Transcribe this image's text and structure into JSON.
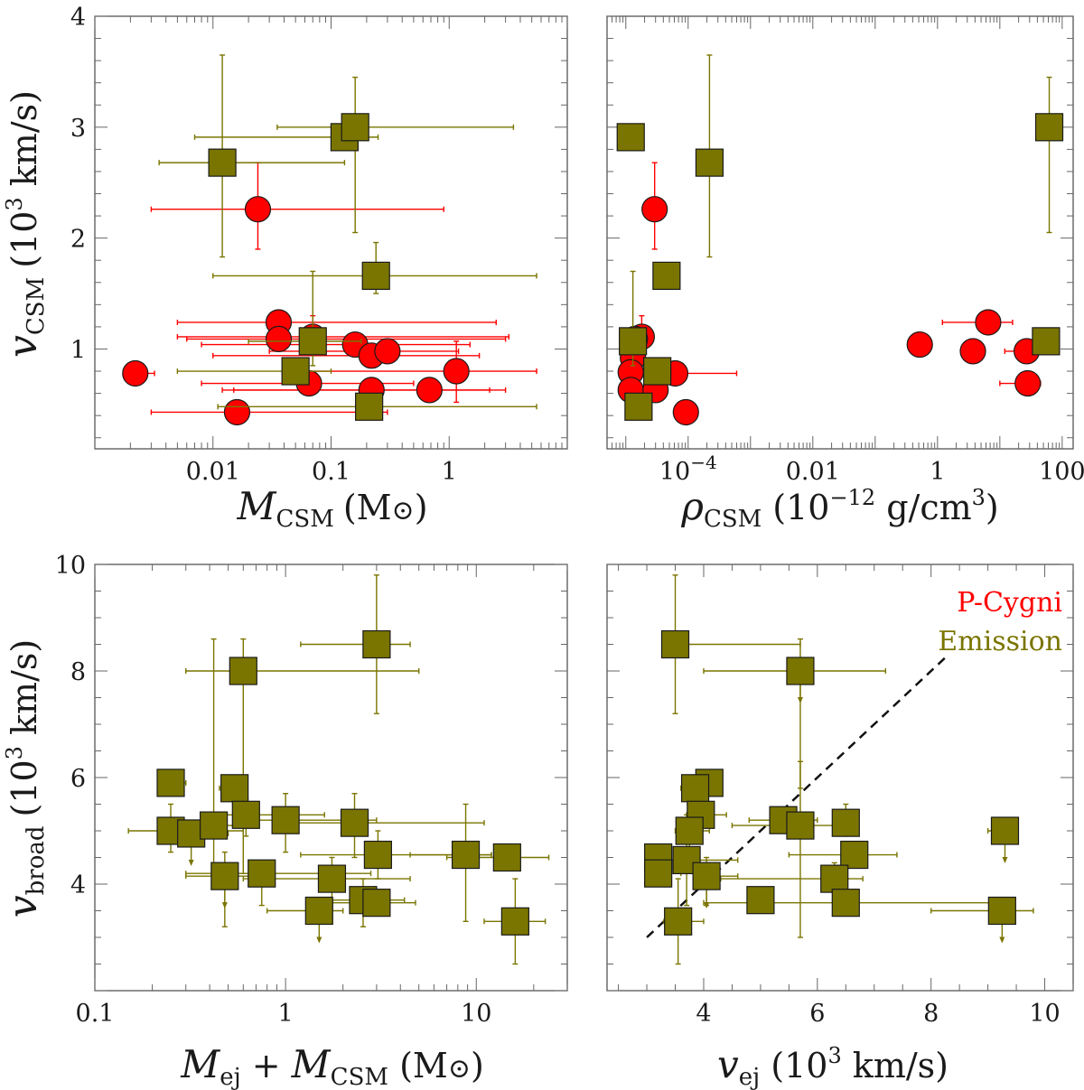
{
  "colors": {
    "pcygni": "#ff0000",
    "emission": "#7a7500",
    "outline": "#1a1a1a"
  },
  "legend": {
    "pcygni_label": "P-Cygni",
    "emission_label": "Emission"
  },
  "chart_data": [
    {
      "type": "scatter",
      "id": "vcsm-vs-mcsm",
      "xlabel": {
        "main": "M",
        "sub": "CSM",
        "unit": "(M",
        "sun": "⊙",
        "close": ")"
      },
      "ylabel": {
        "main": "v",
        "sub": "CSM",
        "pre": "(10",
        "sup": "3",
        "post": " km/s)"
      },
      "xscale": "log",
      "xlim": [
        0.001,
        10
      ],
      "ylim": [
        0.1,
        4
      ],
      "xticks": [
        {
          "v": 0.01,
          "label": "0.01"
        },
        {
          "v": 0.1,
          "label": "0.1"
        },
        {
          "v": 1,
          "label": "1"
        }
      ],
      "yticks": [
        {
          "v": 1,
          "label": "1"
        },
        {
          "v": 2,
          "label": "2"
        },
        {
          "v": 3,
          "label": "3"
        },
        {
          "v": 4,
          "label": "4"
        }
      ],
      "series": [
        {
          "name": "P-Cygni",
          "marker": "circle",
          "points": [
            {
              "x": 0.0022,
              "y": 0.78,
              "xerr": [
                0.0018,
                0.0032
              ]
            },
            {
              "x": 0.024,
              "y": 2.26,
              "xerr": [
                0.003,
                0.9
              ],
              "yerr": [
                1.9,
                2.68
              ]
            },
            {
              "x": 0.036,
              "y": 1.24,
              "xerr": [
                0.005,
                2.5
              ]
            },
            {
              "x": 0.036,
              "y": 1.09,
              "xerr": [
                0.006,
                3.0
              ]
            },
            {
              "x": 0.07,
              "y": 1.11,
              "xerr": [
                0.005,
                3.2
              ],
              "yerr": [
                0.95,
                1.3
              ]
            },
            {
              "x": 0.065,
              "y": 0.69,
              "xerr": [
                0.008,
                0.5
              ]
            },
            {
              "x": 0.016,
              "y": 0.43,
              "xerr": [
                0.003,
                0.3
              ]
            },
            {
              "x": 0.16,
              "y": 1.04,
              "xerr": [
                0.008,
                1.5
              ]
            },
            {
              "x": 0.22,
              "y": 0.94,
              "xerr": [
                0.01,
                1.8
              ]
            },
            {
              "x": 0.3,
              "y": 0.98,
              "xerr": [
                0.03,
                1.2
              ]
            },
            {
              "x": 0.22,
              "y": 0.63,
              "xerr": [
                0.012,
                2.2
              ]
            },
            {
              "x": 0.68,
              "y": 0.63,
              "xerr": [
                0.015,
                3.0
              ]
            },
            {
              "x": 1.15,
              "y": 0.8,
              "xerr": [
                0.04,
                5.5
              ],
              "yerr": [
                0.52,
                1.07
              ]
            }
          ]
        },
        {
          "name": "Emission",
          "marker": "square",
          "points": [
            {
              "x": 0.012,
              "y": 2.68,
              "xerr": [
                0.0035,
                0.13
              ],
              "yerr": [
                1.83,
                3.65
              ]
            },
            {
              "x": 0.13,
              "y": 2.91,
              "xerr": [
                0.007,
                0.25
              ]
            },
            {
              "x": 0.16,
              "y": 3.0,
              "xerr": [
                0.035,
                3.5
              ],
              "yerr": [
                2.05,
                3.45
              ]
            },
            {
              "x": 0.24,
              "y": 1.66,
              "xerr": [
                0.01,
                5.5
              ],
              "yerr": [
                1.5,
                1.96
              ]
            },
            {
              "x": 0.07,
              "y": 1.07,
              "xerr": [
                0.02,
                0.18
              ],
              "yerr": [
                0.85,
                1.7
              ]
            },
            {
              "x": 0.05,
              "y": 0.8,
              "xerr": [
                0.005,
                0.1
              ]
            },
            {
              "x": 0.21,
              "y": 0.48,
              "xerr": [
                0.011,
                5.5
              ]
            }
          ]
        }
      ]
    },
    {
      "type": "scatter",
      "id": "vcsm-vs-rho",
      "xlabel": {
        "main": "ρ",
        "sub": "CSM",
        "pre": "(10",
        "sup": "−12",
        "post": " g/cm",
        "sup2": "3",
        "close": ")"
      },
      "xscale": "log",
      "xlim": [
        5e-06,
        150
      ],
      "ylim": [
        0.1,
        4
      ],
      "xticks": [
        {
          "v": 0.0001,
          "label": "10",
          "sup": "−4"
        },
        {
          "v": 0.01,
          "label": "0.01"
        },
        {
          "v": 1,
          "label": "1"
        },
        {
          "v": 100,
          "label": "100"
        }
      ],
      "yticks": [
        {
          "v": 1
        },
        {
          "v": 2
        },
        {
          "v": 3
        },
        {
          "v": 4
        }
      ],
      "series": [
        {
          "name": "P-Cygni",
          "marker": "circle",
          "points": [
            {
              "x": 2.9e-05,
              "y": 2.26,
              "yerr": [
                1.9,
                2.68
              ]
            },
            {
              "x": 1.8e-05,
              "y": 1.11,
              "yerr": [
                0.95,
                1.3
              ]
            },
            {
              "x": 1.4e-05,
              "y": 1.09
            },
            {
              "x": 1.3e-05,
              "y": 0.92
            },
            {
              "x": 1.2e-05,
              "y": 0.79
            },
            {
              "x": 1.2e-05,
              "y": 0.63
            },
            {
              "x": 3e-05,
              "y": 0.63
            },
            {
              "x": 6.2e-05,
              "y": 0.78,
              "xerr": [
                2.2e-05,
                0.0006
              ]
            },
            {
              "x": 9.2e-05,
              "y": 0.43,
              "xerr": [
                6e-05,
                0.00012
              ]
            },
            {
              "x": 0.52,
              "y": 1.04
            },
            {
              "x": 6.5,
              "y": 1.24,
              "xerr": [
                1.2,
                16
              ]
            },
            {
              "x": 3.7,
              "y": 0.98
            },
            {
              "x": 27,
              "y": 0.98,
              "xerr": [
                12,
                40
              ]
            },
            {
              "x": 28,
              "y": 0.69,
              "xerr": [
                10,
                45
              ]
            }
          ]
        },
        {
          "name": "Emission",
          "marker": "square",
          "points": [
            {
              "x": 1.2e-05,
              "y": 2.91
            },
            {
              "x": 0.00022,
              "y": 2.68,
              "yerr": [
                1.83,
                3.65
              ]
            },
            {
              "x": 4.5e-05,
              "y": 1.66,
              "xerr": [
                3.5e-05,
                6e-05
              ]
            },
            {
              "x": 62,
              "y": 3.0,
              "yerr": [
                2.05,
                3.45
              ]
            },
            {
              "x": 55,
              "y": 1.07
            },
            {
              "x": 1.3e-05,
              "y": 1.07,
              "yerr": [
                0.85,
                1.7
              ]
            },
            {
              "x": 3.2e-05,
              "y": 0.8
            },
            {
              "x": 1.6e-05,
              "y": 0.48
            }
          ]
        }
      ]
    },
    {
      "type": "scatter",
      "id": "vbroad-vs-mtot",
      "xlabel": {
        "main": "M",
        "sub": "ej",
        "mid": " + ",
        "main2": "M",
        "sub2": "CSM",
        "unit": " (M",
        "sun": "⊙",
        "close": ")"
      },
      "ylabel": {
        "main": "v",
        "sub": "broad",
        "pre": "(10",
        "sup": "3",
        "post": " km/s)"
      },
      "xscale": "log",
      "xlim": [
        0.1,
        30
      ],
      "ylim": [
        2,
        10
      ],
      "xticks": [
        {
          "v": 0.1,
          "label": "0.1"
        },
        {
          "v": 1,
          "label": "1"
        },
        {
          "v": 10,
          "label": "10"
        }
      ],
      "yticks": [
        {
          "v": 4,
          "label": "4"
        },
        {
          "v": 6,
          "label": "6"
        },
        {
          "v": 8,
          "label": "8"
        },
        {
          "v": 10,
          "label": "10"
        }
      ],
      "series": [
        {
          "name": "Emission",
          "marker": "square",
          "points": [
            {
              "x": 0.25,
              "y": 5.9,
              "xerr": [
                0.22,
                0.3
              ]
            },
            {
              "x": 0.25,
              "y": 5.0,
              "xerr": [
                0.15,
                0.6
              ],
              "yerr": [
                4.6,
                5.5
              ]
            },
            {
              "x": 0.32,
              "y": 4.95,
              "xerr": [
                0.25,
                0.5
              ],
              "ulim": true
            },
            {
              "x": 0.42,
              "y": 5.1,
              "xerr": [
                0.3,
                0.65
              ],
              "yerr": [
                4.1,
                8.6
              ]
            },
            {
              "x": 0.54,
              "y": 5.8,
              "xerr": [
                0.45,
                0.62
              ]
            },
            {
              "x": 0.6,
              "y": 8.0,
              "xerr": [
                0.3,
                5.0
              ],
              "yerr": [
                4.2,
                8.6
              ]
            },
            {
              "x": 0.62,
              "y": 5.3,
              "xerr": [
                0.45,
                1.6
              ],
              "yerr": [
                4.9,
                5.6
              ]
            },
            {
              "x": 0.48,
              "y": 4.15,
              "xerr": [
                0.3,
                0.85
              ],
              "yerr": [
                3.2,
                4.6
              ],
              "ulim": true
            },
            {
              "x": 0.75,
              "y": 4.2,
              "xerr": [
                0.3,
                2.8
              ],
              "yerr": [
                3.6,
                4.4
              ]
            },
            {
              "x": 1.0,
              "y": 5.2,
              "xerr": [
                0.6,
                3.0
              ],
              "yerr": [
                4.6,
                5.7
              ]
            },
            {
              "x": 1.75,
              "y": 4.1,
              "xerr": [
                0.6,
                4.5
              ],
              "yerr": [
                3.7,
                4.5
              ]
            },
            {
              "x": 1.5,
              "y": 3.5,
              "xerr": [
                0.8,
                2.0
              ],
              "ulim": true
            },
            {
              "x": 2.3,
              "y": 5.15,
              "xerr": [
                0.9,
                11
              ],
              "yerr": [
                4.5,
                5.7
              ]
            },
            {
              "x": 2.55,
              "y": 3.7,
              "xerr": [
                1.3,
                4.2
              ],
              "yerr": [
                3.2,
                4.1
              ]
            },
            {
              "x": 3.0,
              "y": 3.65,
              "xerr": [
                1.5,
                4.8
              ]
            },
            {
              "x": 3.05,
              "y": 4.55,
              "xerr": [
                1.2,
                12
              ],
              "yerr": [
                4.1,
                5.0
              ]
            },
            {
              "x": 3.0,
              "y": 8.5,
              "xerr": [
                1.2,
                4.5
              ],
              "yerr": [
                7.2,
                9.8
              ]
            },
            {
              "x": 8.8,
              "y": 4.55,
              "xerr": [
                4.5,
                12
              ],
              "yerr": [
                3.3,
                5.5
              ]
            },
            {
              "x": 14.5,
              "y": 4.5,
              "xerr": [
                7,
                24
              ]
            },
            {
              "x": 16.0,
              "y": 3.3,
              "xerr": [
                11,
                23
              ],
              "yerr": [
                2.5,
                4.1
              ]
            }
          ]
        }
      ]
    },
    {
      "type": "scatter",
      "id": "vbroad-vs-vej",
      "xlabel": {
        "main": "v",
        "sub": "ej",
        "pre": " (10",
        "sup": "3",
        "post": " km/s)"
      },
      "xscale": "linear",
      "xlim": [
        2.3,
        10.5
      ],
      "ylim": [
        2,
        10
      ],
      "xticks": [
        {
          "v": 4,
          "label": "4"
        },
        {
          "v": 6,
          "label": "6"
        },
        {
          "v": 8,
          "label": "8"
        },
        {
          "v": 10,
          "label": "10"
        }
      ],
      "yticks": [
        {
          "v": 4
        },
        {
          "v": 6
        },
        {
          "v": 8
        },
        {
          "v": 10
        }
      ],
      "line": {
        "style": "dashed",
        "x": [
          3.0,
          8.3
        ],
        "y": [
          3.0,
          8.3
        ]
      },
      "series": [
        {
          "name": "Emission",
          "marker": "square",
          "points": [
            {
              "x": 3.5,
              "y": 8.5,
              "xerr": [
                3.3,
                5.7
              ],
              "yerr": [
                7.2,
                9.8
              ]
            },
            {
              "x": 5.7,
              "y": 8.0,
              "xerr": [
                4.0,
                7.2
              ],
              "yerr": [
                5.8,
                8.6
              ],
              "ulim": true
            },
            {
              "x": 4.1,
              "y": 5.9,
              "xerr": [
                3.9,
                4.3
              ]
            },
            {
              "x": 3.85,
              "y": 5.8,
              "xerr": [
                3.6,
                4.2
              ]
            },
            {
              "x": 3.95,
              "y": 5.3,
              "xerr": [
                3.7,
                4.4
              ]
            },
            {
              "x": 3.75,
              "y": 5.0,
              "xerr": [
                3.5,
                4.1
              ],
              "yerr": [
                4.3,
                5.5
              ]
            },
            {
              "x": 3.2,
              "y": 4.5,
              "xerr": [
                3.0,
                3.4
              ]
            },
            {
              "x": 3.2,
              "y": 4.2,
              "xerr": [
                3.0,
                3.6
              ]
            },
            {
              "x": 3.7,
              "y": 4.45,
              "xerr": [
                3.4,
                4.6
              ],
              "yerr": [
                3.6,
                5.3
              ]
            },
            {
              "x": 4.05,
              "y": 4.15,
              "xerr": [
                3.85,
                4.6
              ],
              "yerr": [
                3.6,
                4.5
              ],
              "ulim": true
            },
            {
              "x": 3.55,
              "y": 3.3,
              "xerr": [
                3.3,
                4.0
              ],
              "yerr": [
                2.5,
                4.1
              ]
            },
            {
              "x": 5.4,
              "y": 5.2,
              "xerr": [
                4.8,
                6.0
              ]
            },
            {
              "x": 5.7,
              "y": 5.1,
              "xerr": [
                4.5,
                6.5
              ],
              "yerr": [
                3.0,
                6.3
              ]
            },
            {
              "x": 6.5,
              "y": 5.15,
              "xerr": [
                6.3,
                6.7
              ],
              "yerr": [
                4.9,
                5.5
              ]
            },
            {
              "x": 6.65,
              "y": 4.55,
              "xerr": [
                5.5,
                7.4
              ]
            },
            {
              "x": 6.3,
              "y": 4.1,
              "xerr": [
                4.3,
                6.8
              ],
              "yerr": [
                3.9,
                4.4
              ]
            },
            {
              "x": 6.5,
              "y": 3.65,
              "xerr": [
                4.0,
                9.3
              ]
            },
            {
              "x": 5.0,
              "y": 3.7,
              "xerr": [
                4.8,
                5.2
              ]
            },
            {
              "x": 9.3,
              "y": 5.0,
              "xerr": [
                9.0,
                9.5
              ],
              "ulim": true
            },
            {
              "x": 9.25,
              "y": 3.5,
              "xerr": [
                8.0,
                9.8
              ],
              "ulim": true
            }
          ]
        }
      ]
    }
  ]
}
